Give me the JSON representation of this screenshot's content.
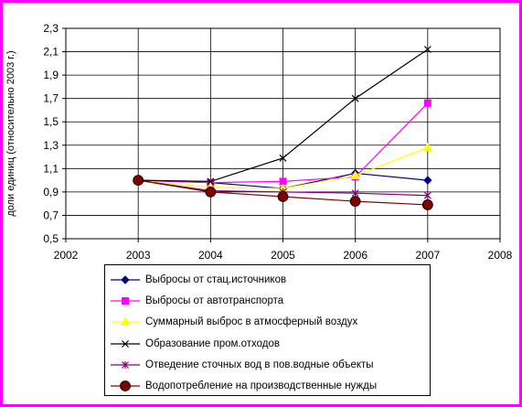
{
  "chart_data": {
    "type": "line",
    "ylabel": "доли единиц (относительно 2003 г.)",
    "xlim": [
      2002,
      2008
    ],
    "ylim": [
      0.5,
      2.3
    ],
    "x_ticks": [
      "2002",
      "2003",
      "2004",
      "2005",
      "2006",
      "2007",
      "2008"
    ],
    "y_ticks": [
      "0,5",
      "0,7",
      "0,9",
      "1,1",
      "1,3",
      "1,5",
      "1,7",
      "1,9",
      "2,1",
      "2,3"
    ],
    "grid": "horizontal",
    "legend_position": "bottom",
    "series": [
      {
        "name": "Выбросы от стац.источников",
        "color": "#000080",
        "marker": "diamond",
        "x": [
          2003,
          2004,
          2005,
          2006,
          2007
        ],
        "values": [
          1.0,
          0.98,
          0.93,
          1.06,
          1.0
        ]
      },
      {
        "name": "Выбросы от автотранспорта",
        "color": "#ff00ff",
        "marker": "square",
        "x": [
          2003,
          2004,
          2005,
          2006,
          2007
        ],
        "values": [
          1.0,
          0.98,
          0.99,
          1.03,
          1.66
        ]
      },
      {
        "name": "Суммарный выброс в атмосферный воздух",
        "color": "#ffff00",
        "marker": "triangle",
        "x": [
          2003,
          2004,
          2005,
          2006,
          2007
        ],
        "values": [
          1.0,
          0.94,
          0.93,
          1.04,
          1.28
        ]
      },
      {
        "name": "Образование пром.отходов",
        "color": "#000000",
        "marker": "x",
        "x": [
          2003,
          2004,
          2005,
          2006,
          2007
        ],
        "values": [
          1.0,
          0.99,
          1.19,
          1.7,
          2.12
        ]
      },
      {
        "name": "Отведение сточных вод в пов.водные объекты",
        "color": "#800080",
        "marker": "star",
        "x": [
          2003,
          2004,
          2005,
          2006,
          2007
        ],
        "values": [
          1.0,
          0.91,
          0.9,
          0.89,
          0.87
        ]
      },
      {
        "name": "Водопотребление на производственные нужды",
        "color": "#800000",
        "marker": "circle",
        "x": [
          2003,
          2004,
          2005,
          2006,
          2007
        ],
        "values": [
          1.0,
          0.9,
          0.86,
          0.82,
          0.79
        ]
      }
    ]
  }
}
